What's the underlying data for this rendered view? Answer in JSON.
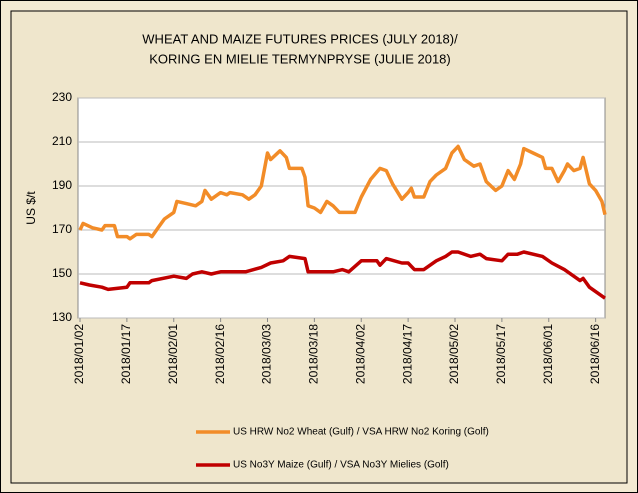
{
  "chart_data": {
    "type": "line",
    "title_lines": [
      "WHEAT AND MAIZE FUTURES PRICES (JULY 2018)/",
      "KORING EN MIELIE TERMYNPRYSE (JULIE 2018)"
    ],
    "y_label": "US $/t",
    "xlim": [
      "2018/01/02",
      "2018/06/19"
    ],
    "xticks": [
      "2018/01/02",
      "2018/01/17",
      "2018/02/01",
      "2018/02/16",
      "2018/03/03",
      "2018/03/18",
      "2018/04/02",
      "2018/04/17",
      "2018/05/02",
      "2018/05/17",
      "2018/06/01",
      "2018/06/16"
    ],
    "ylim": [
      130,
      230
    ],
    "yticks": [
      130,
      150,
      170,
      190,
      210,
      230
    ],
    "grid": true,
    "series": [
      {
        "name": "US HRW No2 Wheat (Gulf) / VSA HRW No2 Koring (Golf)",
        "color": "#f28c28",
        "x": [
          "2018/01/02",
          "2018/01/03",
          "2018/01/06",
          "2018/01/09",
          "2018/01/10",
          "2018/01/13",
          "2018/01/14",
          "2018/01/17",
          "2018/01/18",
          "2018/01/20",
          "2018/01/24",
          "2018/01/25",
          "2018/01/27",
          "2018/01/29",
          "2018/02/01",
          "2018/02/02",
          "2018/02/05",
          "2018/02/08",
          "2018/02/10",
          "2018/02/11",
          "2018/02/13",
          "2018/02/16",
          "2018/02/18",
          "2018/02/19",
          "2018/02/23",
          "2018/02/25",
          "2018/02/27",
          "2018/03/01",
          "2018/03/03",
          "2018/03/04",
          "2018/03/07",
          "2018/03/09",
          "2018/03/10",
          "2018/03/14",
          "2018/03/15",
          "2018/03/16",
          "2018/03/18",
          "2018/03/20",
          "2018/03/22",
          "2018/03/24",
          "2018/03/26",
          "2018/03/29",
          "2018/03/31",
          "2018/04/02",
          "2018/04/05",
          "2018/04/08",
          "2018/04/10",
          "2018/04/12",
          "2018/04/15",
          "2018/04/17",
          "2018/04/18",
          "2018/04/19",
          "2018/04/22",
          "2018/04/24",
          "2018/04/26",
          "2018/04/29",
          "2018/05/01",
          "2018/05/03",
          "2018/05/05",
          "2018/05/08",
          "2018/05/10",
          "2018/05/12",
          "2018/05/15",
          "2018/05/17",
          "2018/05/19",
          "2018/05/21",
          "2018/05/23",
          "2018/05/24",
          "2018/05/27",
          "2018/05/30",
          "2018/05/31",
          "2018/06/02",
          "2018/06/04",
          "2018/06/06",
          "2018/06/07",
          "2018/06/09",
          "2018/06/11",
          "2018/06/12",
          "2018/06/14",
          "2018/06/16",
          "2018/06/18",
          "2018/06/19"
        ],
        "values": [
          170,
          173,
          171,
          170,
          172,
          172,
          167,
          167,
          166,
          168,
          168,
          167,
          171,
          175,
          178,
          183,
          182,
          181,
          183,
          188,
          184,
          187,
          186,
          187,
          186,
          184,
          186,
          190,
          205,
          202,
          206,
          203,
          198,
          198,
          194,
          181,
          180,
          178,
          183,
          181,
          178,
          178,
          178,
          185,
          193,
          198,
          197,
          191,
          184,
          187,
          189,
          185,
          185,
          192,
          195,
          198,
          205,
          208,
          202,
          199,
          200,
          192,
          188,
          190,
          197,
          193,
          200,
          207,
          205,
          203,
          198,
          198,
          192,
          197,
          200,
          197,
          198,
          203,
          191,
          188,
          183,
          177
        ]
      },
      {
        "name": "US No3Y Maize (Gulf) / VSA No3Y Mielies (Golf)",
        "color": "#c00000",
        "x": [
          "2018/01/02",
          "2018/01/05",
          "2018/01/09",
          "2018/01/11",
          "2018/01/17",
          "2018/01/18",
          "2018/01/24",
          "2018/01/25",
          "2018/02/01",
          "2018/02/05",
          "2018/02/07",
          "2018/02/10",
          "2018/02/13",
          "2018/02/16",
          "2018/02/24",
          "2018/03/01",
          "2018/03/04",
          "2018/03/08",
          "2018/03/10",
          "2018/03/15",
          "2018/03/16",
          "2018/03/24",
          "2018/03/27",
          "2018/03/29",
          "2018/04/02",
          "2018/04/07",
          "2018/04/08",
          "2018/04/10",
          "2018/04/15",
          "2018/04/17",
          "2018/04/19",
          "2018/04/22",
          "2018/04/26",
          "2018/04/29",
          "2018/05/01",
          "2018/05/03",
          "2018/05/07",
          "2018/05/10",
          "2018/05/12",
          "2018/05/17",
          "2018/05/19",
          "2018/05/22",
          "2018/05/24",
          "2018/05/30",
          "2018/06/02",
          "2018/06/06",
          "2018/06/09",
          "2018/06/11",
          "2018/06/12",
          "2018/06/14",
          "2018/06/16",
          "2018/06/19"
        ],
        "values": [
          146,
          145,
          144,
          143,
          144,
          146,
          146,
          147,
          149,
          148,
          150,
          151,
          150,
          151,
          151,
          153,
          155,
          156,
          158,
          157,
          151,
          151,
          152,
          151,
          156,
          156,
          154,
          157,
          155,
          155,
          152,
          152,
          156,
          158,
          160,
          160,
          158,
          159,
          157,
          156,
          159,
          159,
          160,
          158,
          155,
          152,
          149,
          147,
          148,
          144,
          142,
          139
        ]
      }
    ]
  }
}
